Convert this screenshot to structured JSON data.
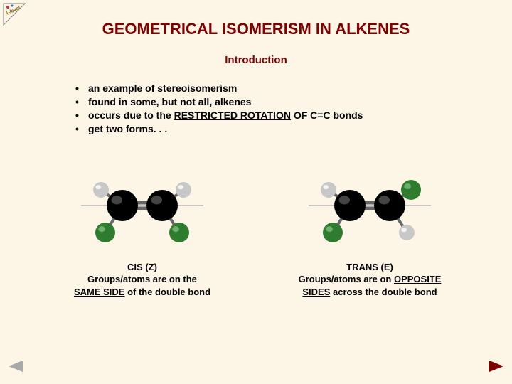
{
  "title": "GEOMETRICAL ISOMERISM IN ALKENES",
  "subtitle": "Introduction",
  "bullets": [
    {
      "pre": "an example of stereoisomerism",
      "under": "",
      "post": ""
    },
    {
      "pre": "found in some, but not all, alkenes",
      "under": "",
      "post": ""
    },
    {
      "pre": "occurs due to the ",
      "under": "RESTRICTED ROTATION",
      "post": " OF C=C bonds"
    },
    {
      "pre": "get two forms. . .",
      "under": "",
      "post": ""
    }
  ],
  "molecules": {
    "cis": {
      "caption_line1": "CIS  (Z)",
      "caption_line2_a": "Groups/atoms are on the",
      "caption_line3_u": "SAME SIDE",
      "caption_line3_b": " of the double bond",
      "carbon_color": "#000000",
      "hydrogen_color": "#c8c8c8",
      "group_color": "#2e7d2e",
      "bond_color": "#666666",
      "axis_color": "#999999",
      "greens": "same"
    },
    "trans": {
      "caption_line1": "TRANS  (E)",
      "caption_line2_a": "Groups/atoms are on ",
      "caption_line2_u": "OPPOSITE",
      "caption_line3_u": "SIDES",
      "caption_line3_b": " across the double bond",
      "carbon_color": "#000000",
      "hydrogen_color": "#c8c8c8",
      "group_color": "#2e7d2e",
      "bond_color": "#666666",
      "axis_color": "#999999",
      "greens": "opposite"
    }
  },
  "nav": {
    "prev_color": "#a9a9a9",
    "next_color": "#800000"
  },
  "logo": {
    "stroke": "#808080",
    "text_color": "#806000",
    "accent1": "#cc3333",
    "accent2": "#3366cc"
  }
}
